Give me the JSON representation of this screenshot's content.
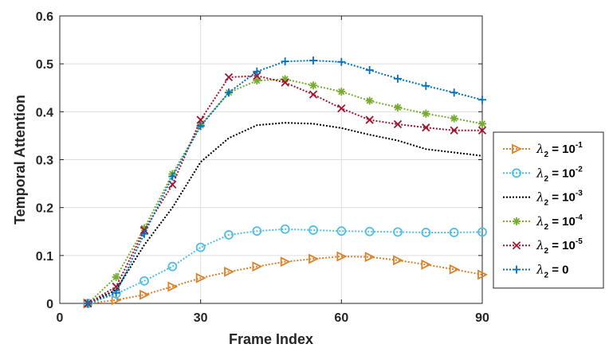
{
  "chart_data": {
    "type": "line",
    "xlabel": "Frame Index",
    "ylabel": "Temporal Attention",
    "xlim": [
      0,
      90
    ],
    "ylim": [
      0,
      0.6
    ],
    "xticks": [
      "0",
      "30",
      "60",
      "90"
    ],
    "yticks": [
      "0",
      "0.1",
      "0.2",
      "0.3",
      "0.4",
      "0.5",
      "0.6"
    ],
    "grid": true,
    "legend_position": "right",
    "x": [
      6,
      12,
      18,
      24,
      30,
      36,
      42,
      48,
      54,
      60,
      66,
      72,
      78,
      84,
      90
    ],
    "series": [
      {
        "name": "λ2 = 10^-1",
        "legend": {
          "greek": "λ",
          "sub": "2",
          "eq": " = 10",
          "sup": "-1"
        },
        "color": "#d9822b",
        "marker": "triangle-right",
        "values": [
          0.0,
          0.007,
          0.018,
          0.035,
          0.053,
          0.066,
          0.077,
          0.087,
          0.093,
          0.098,
          0.097,
          0.09,
          0.081,
          0.071,
          0.06
        ]
      },
      {
        "name": "λ2 = 10^-2",
        "legend": {
          "greek": "λ",
          "sub": "2",
          "eq": " = 10",
          "sup": "-2"
        },
        "color": "#4fbfe6",
        "marker": "circle",
        "values": [
          0.0,
          0.02,
          0.047,
          0.077,
          0.117,
          0.143,
          0.151,
          0.155,
          0.153,
          0.151,
          0.15,
          0.149,
          0.148,
          0.148,
          0.149
        ]
      },
      {
        "name": "λ2 = 10^-3",
        "legend": {
          "greek": "λ",
          "sub": "2",
          "eq": " = 10",
          "sup": "-3"
        },
        "color": "#000000",
        "marker": "none",
        "values": [
          0.0,
          0.028,
          0.122,
          0.2,
          0.295,
          0.345,
          0.372,
          0.377,
          0.375,
          0.366,
          0.352,
          0.34,
          0.322,
          0.315,
          0.308
        ]
      },
      {
        "name": "λ2 = 10^-4",
        "legend": {
          "greek": "λ",
          "sub": "2",
          "eq": " = 10",
          "sup": "-4"
        },
        "color": "#77ac30",
        "marker": "asterisk",
        "values": [
          0.0,
          0.055,
          0.157,
          0.27,
          0.372,
          0.44,
          0.465,
          0.468,
          0.455,
          0.442,
          0.423,
          0.409,
          0.396,
          0.386,
          0.375
        ]
      },
      {
        "name": "λ2 = 10^-5",
        "legend": {
          "greek": "λ",
          "sub": "2",
          "eq": " = 10",
          "sup": "-5"
        },
        "color": "#a2142f",
        "marker": "x",
        "values": [
          0.0,
          0.035,
          0.153,
          0.248,
          0.383,
          0.472,
          0.475,
          0.461,
          0.436,
          0.407,
          0.383,
          0.374,
          0.367,
          0.361,
          0.361
        ]
      },
      {
        "name": "λ2 = 0",
        "legend": {
          "greek": "λ",
          "sub": "2",
          "eq": " = 0",
          "sup": ""
        },
        "color": "#0072bd",
        "marker": "plus",
        "values": [
          0.0,
          0.022,
          0.145,
          0.265,
          0.37,
          0.44,
          0.484,
          0.505,
          0.507,
          0.504,
          0.487,
          0.469,
          0.454,
          0.44,
          0.425
        ]
      }
    ]
  }
}
